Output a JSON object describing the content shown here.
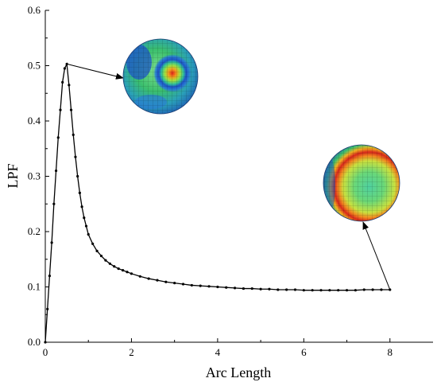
{
  "chart_data": {
    "type": "line",
    "xlabel": "Arc Length",
    "ylabel": "LPF",
    "xlim": [
      0,
      9
    ],
    "ylim": [
      0.0,
      0.6
    ],
    "xticks": [
      "0",
      "2",
      "4",
      "6",
      "8"
    ],
    "xtick_values": [
      0,
      2,
      4,
      6,
      8
    ],
    "yticks": [
      "0.0",
      "0.1",
      "0.2",
      "0.3",
      "0.4",
      "0.5",
      "0.6"
    ],
    "ytick_values": [
      0.0,
      0.1,
      0.2,
      0.3,
      0.4,
      0.5,
      0.6
    ],
    "grid": false,
    "series": [
      {
        "marker": "dot",
        "color": "#000000",
        "x": [
          0.0,
          0.05,
          0.1,
          0.15,
          0.2,
          0.25,
          0.3,
          0.35,
          0.4,
          0.45,
          0.5,
          0.55,
          0.6,
          0.65,
          0.7,
          0.75,
          0.8,
          0.85,
          0.9,
          0.95,
          1.0,
          1.1,
          1.2,
          1.3,
          1.4,
          1.5,
          1.6,
          1.7,
          1.8,
          1.9,
          2.0,
          2.2,
          2.4,
          2.6,
          2.8,
          3.0,
          3.2,
          3.4,
          3.6,
          3.8,
          4.0,
          4.2,
          4.4,
          4.6,
          4.8,
          5.0,
          5.2,
          5.4,
          5.6,
          5.8,
          6.0,
          6.2,
          6.4,
          6.6,
          6.8,
          7.0,
          7.2,
          7.4,
          7.6,
          7.8,
          8.0
        ],
        "y": [
          0.0,
          0.06,
          0.12,
          0.18,
          0.25,
          0.31,
          0.37,
          0.42,
          0.47,
          0.495,
          0.503,
          0.465,
          0.42,
          0.375,
          0.335,
          0.3,
          0.27,
          0.245,
          0.225,
          0.21,
          0.195,
          0.178,
          0.165,
          0.156,
          0.148,
          0.142,
          0.137,
          0.133,
          0.13,
          0.127,
          0.124,
          0.119,
          0.115,
          0.112,
          0.109,
          0.107,
          0.105,
          0.103,
          0.102,
          0.101,
          0.1,
          0.099,
          0.098,
          0.097,
          0.097,
          0.096,
          0.096,
          0.095,
          0.095,
          0.095,
          0.094,
          0.094,
          0.094,
          0.094,
          0.094,
          0.094,
          0.094,
          0.095,
          0.095,
          0.095,
          0.095
        ]
      }
    ],
    "annotations": [
      {
        "kind": "arrow-to-image",
        "from": [
          0.5,
          0.503
        ],
        "image": "buckled-sphere-peak-icon"
      },
      {
        "kind": "arrow-to-image",
        "from": [
          8.0,
          0.095
        ],
        "image": "buckled-sphere-end-icon"
      }
    ]
  }
}
